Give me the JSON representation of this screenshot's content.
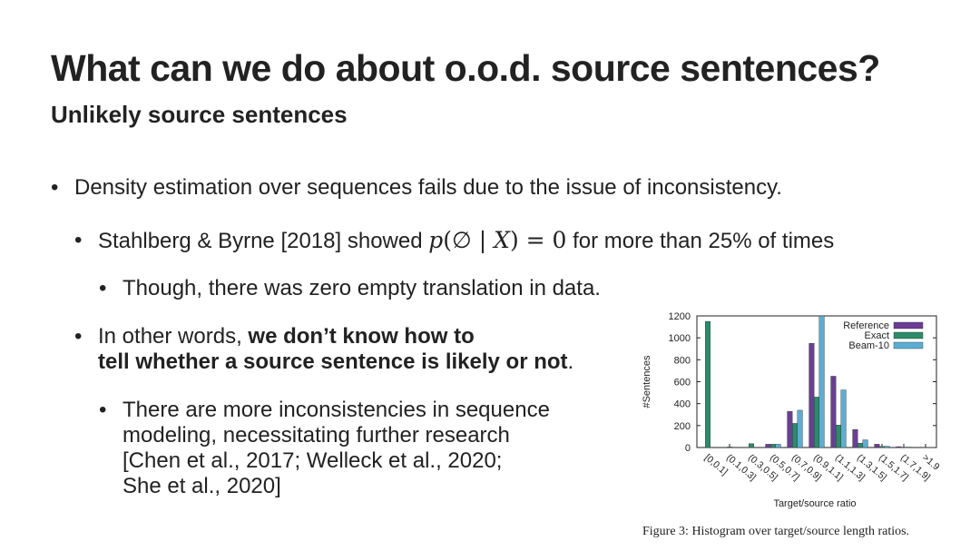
{
  "slide": {
    "title": "What can we do about o.o.d. source sentences?",
    "subtitle": "Unlikely source sentences",
    "bullets": {
      "b1": "Density estimation over sequences fails due to the issue of inconsistency.",
      "b2_pre": "Stahlberg & Byrne [2018] showed ",
      "b2_math": {
        "p": "p",
        "open": "(",
        "empty": "∅",
        "bar": " | ",
        "X": "X",
        "close": ") = 0"
      },
      "b2_post": " for more than 25% of times",
      "b3": "Though, there was zero empty translation in data.",
      "b4_pre": "In other words, ",
      "b4_bold1": "we don’t know how to",
      "b4_bold2": "tell whether a source sentence is likely or not",
      "b4_post": ".",
      "b5_lines": [
        "There are more inconsistencies in sequence",
        "modeling, necessitating further research",
        "[Chen et al., 2017; Welleck et al., 2020;",
        "She et al., 2020]"
      ]
    },
    "bullet_glyph": "•"
  },
  "caption": "Figure 3: Histogram over target/source length ratios.",
  "chart_data": {
    "type": "bar",
    "categories": [
      "[0,0.1]",
      "(0.1,0.3]",
      "(0.3,0.5]",
      "(0.5,0.7]",
      "(0.7,0.9]",
      "(0.9,1.1]",
      "(1.1,1.3]",
      "(1.3,1.5]",
      "(1.5,1.7]",
      "(1.7,1.9]",
      ">1.9"
    ],
    "series": [
      {
        "name": "Reference",
        "color": "#6b3d96",
        "values": [
          0,
          0,
          0,
          30,
          330,
          950,
          650,
          165,
          30,
          8,
          3
        ]
      },
      {
        "name": "Exact",
        "color": "#2a8c6a",
        "values": [
          1150,
          5,
          35,
          30,
          220,
          460,
          205,
          40,
          10,
          3,
          1
        ]
      },
      {
        "name": "Beam-10",
        "color": "#5aaed6",
        "values": [
          0,
          0,
          0,
          30,
          340,
          1200,
          525,
          70,
          12,
          4,
          2
        ]
      }
    ],
    "xlabel": "Target/source ratio",
    "ylabel": "#Sentences",
    "ylim": [
      0,
      1200
    ],
    "yticks": [
      0,
      200,
      400,
      600,
      800,
      1000,
      1200
    ],
    "legend_position": "top-right",
    "grid": false
  }
}
